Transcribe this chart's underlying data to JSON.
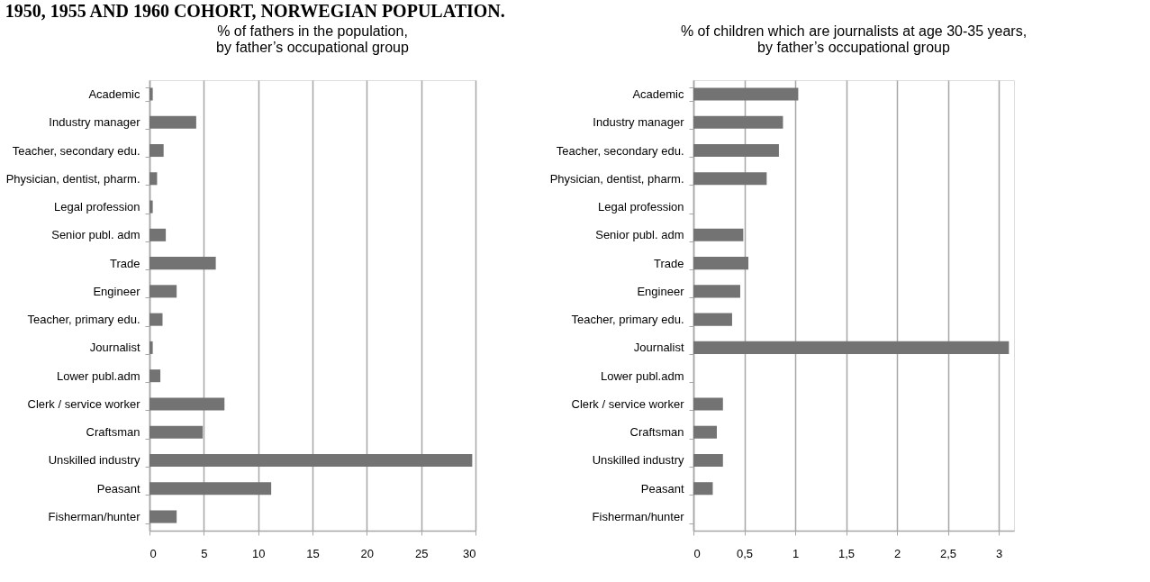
{
  "chart_data": [
    {
      "type": "bar",
      "orientation": "horizontal",
      "title": [
        "% of fathers in the population,",
        "by father’s occupational group"
      ],
      "annotations": [
        "1950, 1955 AND 1960 COHORT, NORWEGIAN POPULATION."
      ],
      "categories": [
        "Academic",
        "Industry manager",
        "Teacher, secondary edu.",
        "Physician, dentist, pharm.",
        "Legal profession",
        "Senior publ. adm",
        "Trade",
        "Engineer",
        "Teacher, primary edu.",
        "Journalist",
        "Lower publ.adm",
        "Clerk / service worker",
        "Craftsman",
        "Unskilled industry",
        "Peasant",
        "Fisherman/hunter"
      ],
      "series": [
        {
          "color": "#737373",
          "values": [
            0.3,
            4.3,
            1.3,
            0.7,
            0.3,
            1.5,
            6.1,
            2.5,
            1.2,
            0.3,
            1.0,
            6.9,
            4.9,
            29.7,
            11.2,
            2.5
          ]
        }
      ],
      "xlim": [
        0,
        30
      ],
      "xticks": [
        0,
        5,
        10,
        15,
        20,
        25,
        30
      ],
      "grid": "x"
    },
    {
      "type": "bar",
      "orientation": "horizontal",
      "title": [
        "% of children which are journalists at age 30-35 years,",
        "by father’s occupational group"
      ],
      "categories": [
        "Academic",
        "Industry manager",
        "Teacher, secondary edu.",
        "Physician, dentist, pharm.",
        "Legal profession",
        "Senior publ. adm",
        "Trade",
        "Engineer",
        "Teacher, primary edu.",
        "Journalist",
        "Lower publ.adm",
        "Clerk / service worker",
        "Craftsman",
        "Unskilled industry",
        "Peasant",
        "Fisherman/hunter"
      ],
      "series": [
        {
          "color": "#737373",
          "values": [
            1.03,
            0.88,
            0.84,
            0.72,
            null,
            0.49,
            0.54,
            0.46,
            0.38,
            3.1,
            null,
            0.29,
            0.23,
            0.29,
            0.19,
            null
          ]
        }
      ],
      "xlim": [
        0,
        3.15
      ],
      "xticks": [
        0,
        {
          "value": 0.5,
          "label": "0,5"
        },
        1,
        {
          "value": 1.5,
          "label": "1,5"
        },
        2,
        {
          "value": 2.5,
          "label": "2,5"
        },
        3
      ],
      "grid": "x"
    }
  ]
}
